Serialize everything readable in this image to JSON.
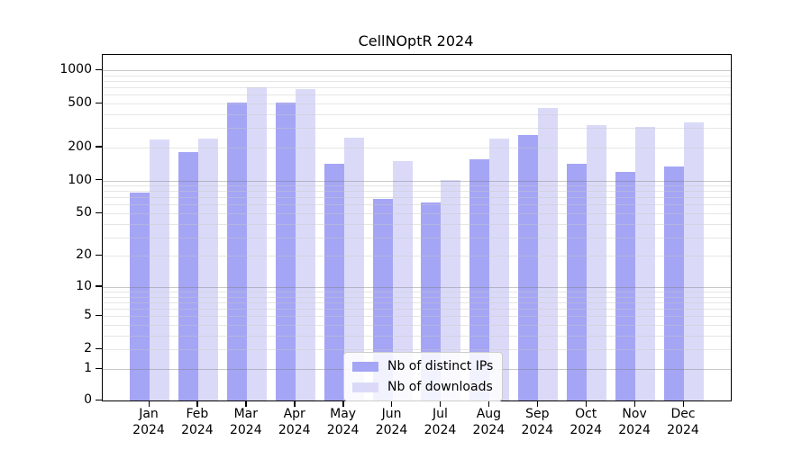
{
  "title": "CellNOptR 2024",
  "chart_data": {
    "type": "bar",
    "title": "CellNOptR 2024",
    "scale": "log1p",
    "grid": true,
    "legend_position": "inside-bottom-center",
    "categories": [
      "Jan",
      "Feb",
      "Mar",
      "Apr",
      "May",
      "Jun",
      "Jul",
      "Aug",
      "Sep",
      "Oct",
      "Nov",
      "Dec"
    ],
    "year_label": "2024",
    "series": [
      {
        "name": "Nb of distinct IPs",
        "color": "#a5a5f5",
        "values": [
          77,
          183,
          510,
          510,
          143,
          68,
          63,
          155,
          258,
          143,
          120,
          135
        ]
      },
      {
        "name": "Nb of downloads",
        "color": "#dadaf8",
        "values": [
          235,
          240,
          700,
          675,
          245,
          150,
          101,
          240,
          455,
          320,
          308,
          338
        ]
      }
    ],
    "y_ticks": [
      1000,
      500,
      200,
      100,
      50,
      20,
      10,
      5,
      2,
      1,
      0
    ],
    "ylim": [
      0,
      1100
    ],
    "gridlines": {
      "major": [
        1000,
        100,
        10,
        1
      ],
      "minor": [
        900,
        800,
        700,
        600,
        500,
        400,
        300,
        200,
        90,
        80,
        70,
        60,
        50,
        40,
        30,
        20,
        9,
        8,
        7,
        6,
        5,
        4,
        3,
        2
      ]
    }
  }
}
